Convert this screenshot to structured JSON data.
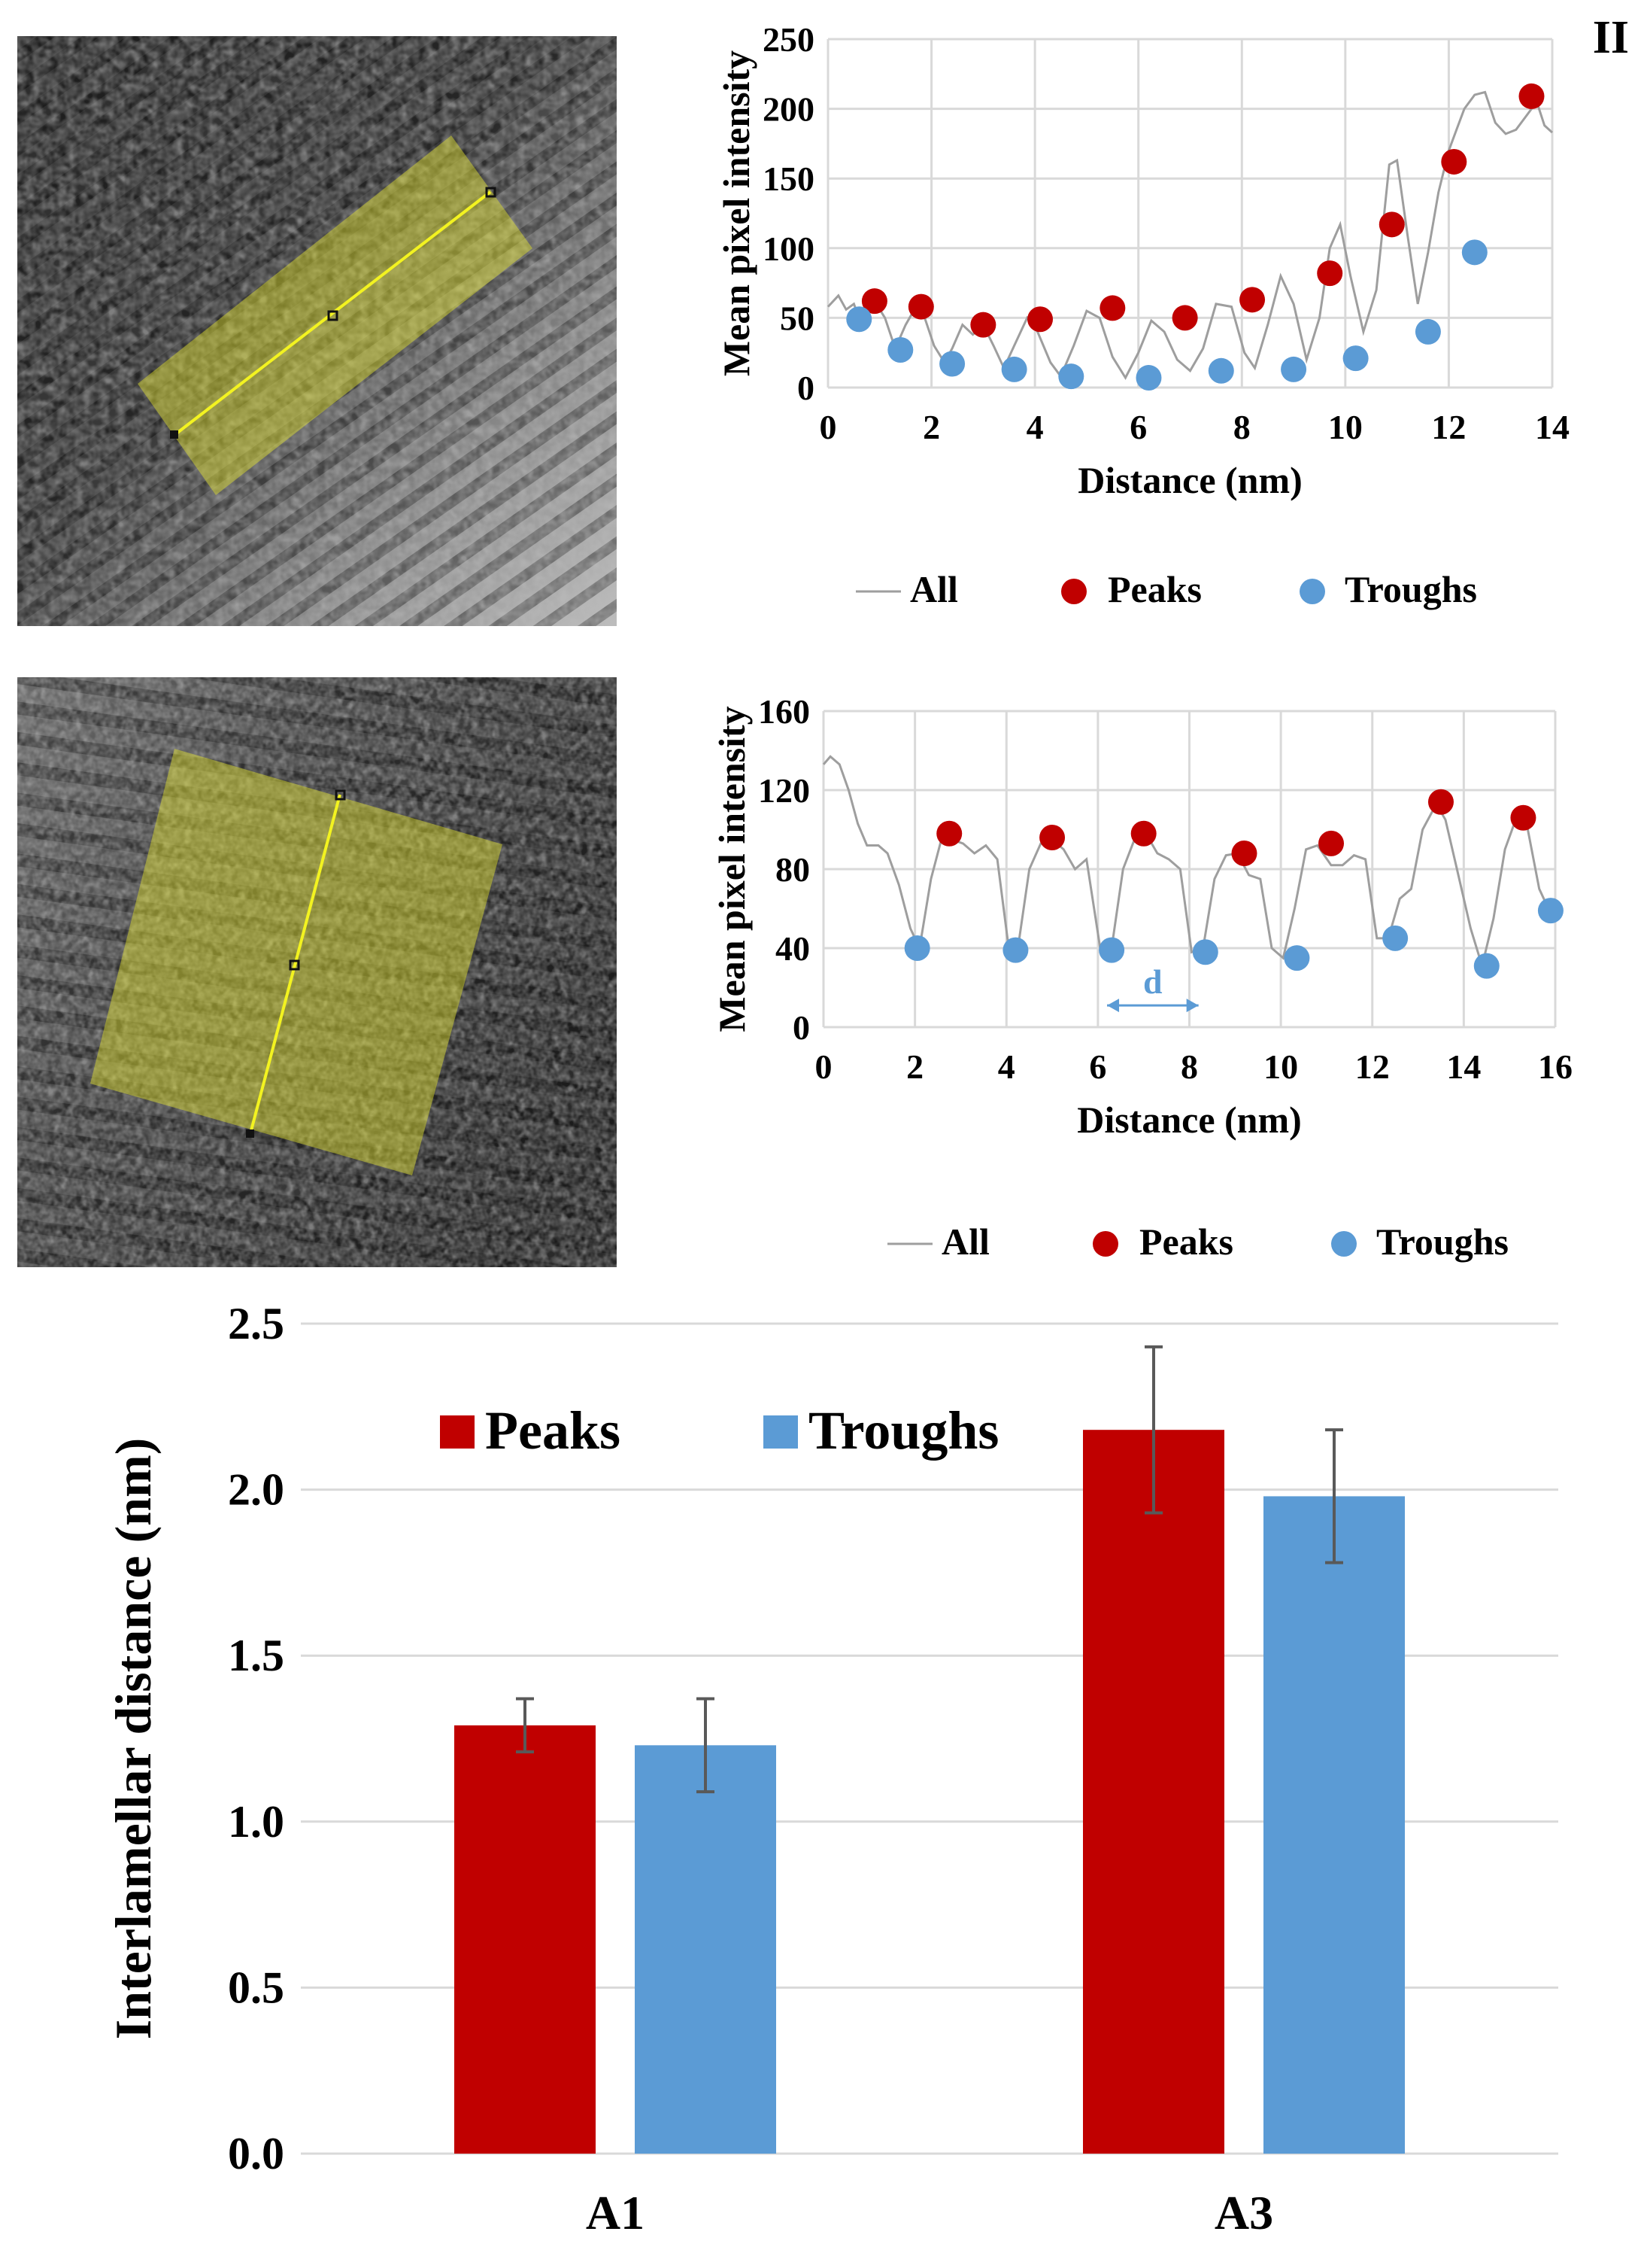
{
  "panel_label": "II",
  "colors": {
    "peaks": "#C00000",
    "troughs": "#5B9BD5",
    "all_line": "#9E9E9E",
    "grid": "#D9D9D9",
    "error_bar": "#595959",
    "tem_overlay": "#E6E62E"
  },
  "chart_data": [
    {
      "type": "line",
      "xlabel": "Distance (nm)",
      "ylabel": "Mean pixel intensity",
      "xlim": [
        0,
        14
      ],
      "ylim": [
        0,
        250
      ],
      "xticks": [
        0,
        2,
        4,
        6,
        8,
        10,
        12,
        14
      ],
      "yticks": [
        0,
        50,
        100,
        150,
        200,
        250
      ],
      "grid": true,
      "legend_position": "bottom",
      "legend": [
        "All",
        "Peaks",
        "Troughs"
      ],
      "series": [
        {
          "name": "All",
          "kind": "line",
          "x": [
            0,
            0.2,
            0.35,
            0.5,
            0.6,
            0.75,
            0.9,
            1.1,
            1.3,
            1.5,
            1.7,
            1.85,
            2.05,
            2.25,
            2.4,
            2.6,
            2.8,
            3.0,
            3.2,
            3.4,
            3.6,
            3.85,
            4.05,
            4.3,
            4.5,
            4.75,
            5.0,
            5.25,
            5.5,
            5.75,
            6.0,
            6.25,
            6.5,
            6.75,
            7.0,
            7.25,
            7.5,
            7.8,
            8.05,
            8.25,
            8.5,
            8.75,
            9.0,
            9.25,
            9.5,
            9.7,
            9.9,
            10.1,
            10.35,
            10.6,
            10.85,
            11.0,
            11.2,
            11.4,
            11.6,
            11.8,
            12.0,
            12.15,
            12.3,
            12.5,
            12.7,
            12.9,
            13.1,
            13.3,
            13.5,
            13.7,
            13.85,
            14.0
          ],
          "y": [
            58,
            66,
            56,
            60,
            50,
            58,
            62,
            50,
            28,
            45,
            58,
            52,
            30,
            18,
            28,
            45,
            38,
            45,
            30,
            14,
            30,
            50,
            40,
            18,
            8,
            30,
            55,
            50,
            22,
            7,
            25,
            48,
            40,
            20,
            12,
            28,
            60,
            58,
            25,
            14,
            45,
            80,
            60,
            20,
            50,
            100,
            117,
            80,
            40,
            70,
            160,
            163,
            110,
            60,
            97,
            140,
            170,
            185,
            200,
            210,
            212,
            190,
            182,
            185,
            195,
            205,
            188,
            183
          ]
        },
        {
          "name": "Peaks",
          "kind": "scatter",
          "x": [
            0.9,
            1.8,
            3.0,
            4.1,
            5.5,
            6.9,
            8.2,
            9.7,
            10.9,
            12.1,
            13.6
          ],
          "y": [
            62,
            58,
            45,
            49,
            57,
            50,
            63,
            82,
            117,
            162,
            209
          ]
        },
        {
          "name": "Troughs",
          "kind": "scatter",
          "x": [
            0.6,
            1.4,
            2.4,
            3.6,
            4.7,
            6.2,
            7.6,
            9.0,
            10.2,
            11.6,
            12.5
          ],
          "y": [
            49,
            27,
            17,
            13,
            8,
            7,
            12,
            13,
            21,
            40,
            97
          ]
        }
      ]
    },
    {
      "type": "line",
      "xlabel": "Distance (nm)",
      "ylabel": "Mean pixel intensity",
      "xlim": [
        0,
        16
      ],
      "ylim": [
        0,
        160
      ],
      "xticks": [
        0,
        2,
        4,
        6,
        8,
        10,
        12,
        14,
        16
      ],
      "yticks": [
        0,
        40,
        80,
        120,
        160
      ],
      "grid": true,
      "legend_position": "bottom",
      "legend": [
        "All",
        "Peaks",
        "Troughs"
      ],
      "annotation": {
        "text": "d",
        "x_from": 6.2,
        "x_to": 8.2,
        "y": 11
      },
      "series": [
        {
          "name": "All",
          "kind": "line",
          "x": [
            0,
            0.15,
            0.35,
            0.55,
            0.75,
            0.95,
            1.2,
            1.4,
            1.65,
            1.9,
            2.1,
            2.35,
            2.6,
            2.8,
            3.05,
            3.3,
            3.55,
            3.8,
            4.05,
            4.25,
            4.5,
            4.75,
            5.0,
            5.25,
            5.5,
            5.75,
            6.05,
            6.3,
            6.55,
            6.8,
            7.05,
            7.3,
            7.55,
            7.8,
            8.05,
            8.3,
            8.55,
            8.8,
            9.05,
            9.3,
            9.55,
            9.8,
            10.05,
            10.3,
            10.55,
            10.8,
            11.1,
            11.35,
            11.6,
            11.85,
            12.1,
            12.35,
            12.6,
            12.85,
            13.1,
            13.4,
            13.6,
            13.85,
            14.15,
            14.4,
            14.65,
            14.9,
            15.15,
            15.4,
            15.65,
            15.85,
            16.0
          ],
          "y": [
            133,
            137,
            133,
            120,
            103,
            92,
            92,
            88,
            72,
            50,
            40,
            75,
            97,
            95,
            93,
            88,
            92,
            85,
            40,
            40,
            80,
            93,
            95,
            90,
            80,
            85,
            40,
            40,
            80,
            95,
            98,
            88,
            85,
            80,
            38,
            40,
            75,
            87,
            88,
            77,
            75,
            40,
            35,
            60,
            90,
            92,
            82,
            82,
            87,
            85,
            45,
            45,
            65,
            70,
            100,
            113,
            105,
            80,
            50,
            31,
            55,
            90,
            106,
            100,
            70,
            60,
            65
          ]
        },
        {
          "name": "Peaks",
          "kind": "scatter",
          "x": [
            2.75,
            5.0,
            7.0,
            9.2,
            11.1,
            13.5,
            15.3
          ],
          "y": [
            98,
            96,
            98,
            88,
            93,
            114,
            106
          ]
        },
        {
          "name": "Troughs",
          "kind": "scatter",
          "x": [
            2.05,
            4.2,
            6.3,
            8.35,
            10.35,
            12.5,
            14.5,
            15.9
          ],
          "y": [
            40,
            39,
            39,
            38,
            35,
            45,
            31,
            59
          ]
        }
      ]
    },
    {
      "type": "bar",
      "ylabel": "Interlamellar distance (nm)",
      "categories": [
        "A1",
        "A3"
      ],
      "ylim": [
        0,
        2.5
      ],
      "yticks": [
        "0.0",
        "0.5",
        "1.0",
        "1.5",
        "2.0",
        "2.5"
      ],
      "grid": true,
      "legend_position": "top-left",
      "legend": [
        "Peaks",
        "Troughs"
      ],
      "series": [
        {
          "name": "Peaks",
          "values": [
            1.29,
            2.18
          ],
          "errors": [
            0.08,
            0.25
          ]
        },
        {
          "name": "Troughs",
          "values": [
            1.23,
            1.98
          ],
          "errors": [
            0.14,
            0.2
          ]
        }
      ]
    }
  ]
}
